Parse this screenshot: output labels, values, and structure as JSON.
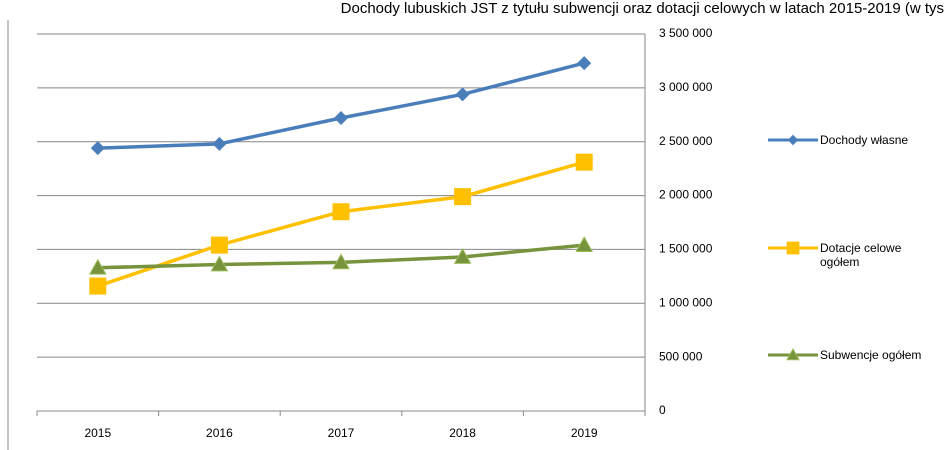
{
  "chart_data": {
    "type": "line",
    "title": "Dochody lubuskich JST z tytułu subwencji oraz dotacji celowych w latach 2015-2019 (w tys",
    "categories": [
      "2015",
      "2016",
      "2017",
      "2018",
      "2019"
    ],
    "series": [
      {
        "name": "Dochody własne",
        "color": "#4a7ebb",
        "marker": "diamond",
        "values": [
          2440000,
          2480000,
          2720000,
          2940000,
          3230000
        ]
      },
      {
        "name": "Dotacje celowe ogółem",
        "color": "#ffc000",
        "marker": "square",
        "values": [
          1160000,
          1540000,
          1850000,
          1990000,
          2310000
        ]
      },
      {
        "name": "Subwencje ogółem",
        "color": "#77933c",
        "marker": "triangle",
        "values": [
          1330000,
          1360000,
          1380000,
          1430000,
          1540000
        ]
      }
    ],
    "ylim": [
      0,
      3500000
    ],
    "yticks": [
      0,
      {
        "value": 500000,
        "label": "500 000"
      },
      {
        "value": 1000000,
        "label": "1 000 000"
      },
      {
        "value": 1500000,
        "label": "1 500 000"
      },
      {
        "value": 2000000,
        "label": "2 000 000"
      },
      {
        "value": 2500000,
        "label": "2 500 000"
      },
      {
        "value": 3000000,
        "label": "3 000 000"
      },
      {
        "value": 3500000,
        "label": "3 500 000"
      }
    ],
    "grid": true
  }
}
